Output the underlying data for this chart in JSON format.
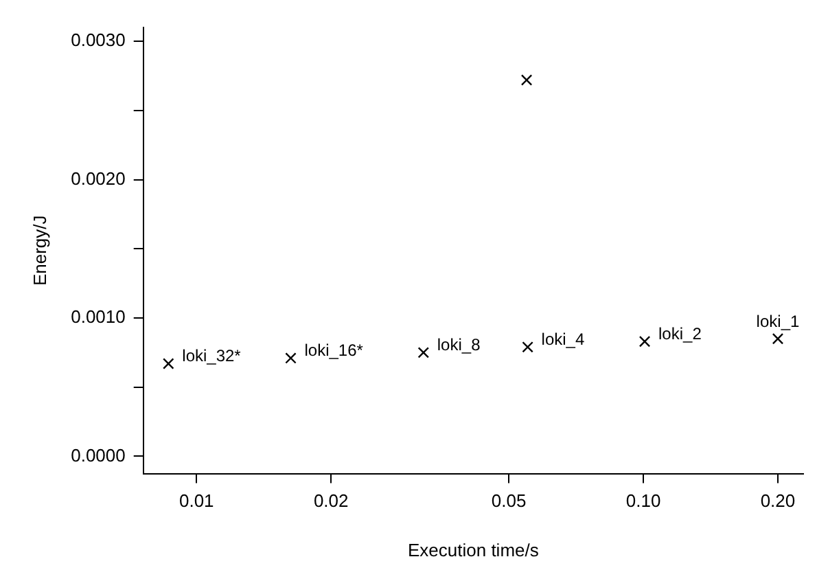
{
  "chart_data": {
    "type": "scatter",
    "xlabel": "Execution time/s",
    "ylabel": "Energy/J",
    "x": [
      0.00865,
      0.01625,
      0.0322,
      0.0551,
      0.0548,
      0.1007,
      0.2
    ],
    "series": [
      {
        "color": "#000000",
        "values": [
          0.00067,
          0.00071,
          0.00075,
          0.00079,
          0.00272,
          0.00083,
          0.00085
        ]
      }
    ],
    "log": "x",
    "xlim": [
      0.0076,
      0.228
    ],
    "ylim": [
      -0.000125,
      0.0031
    ],
    "xticks": [
      0.01,
      0.02,
      0.05,
      {
        "value": 0.1,
        "label": "0.10"
      },
      {
        "value": 0.2,
        "label": "0.20"
      }
    ],
    "yticks": [
      {
        "value": 0,
        "label": "0.0000"
      },
      {
        "value": 0.0005,
        "label": null
      },
      {
        "value": 0.001,
        "label": "0.0010"
      },
      {
        "value": 0.0015,
        "label": null
      },
      {
        "value": 0.002,
        "label": "0.0020"
      },
      {
        "value": 0.0025,
        "label": null
      },
      {
        "value": 0.003,
        "label": "0.0030"
      }
    ],
    "marker": "cross",
    "grid": false,
    "legend": false,
    "annotations": [
      {
        "text": "loki_32*",
        "x": 0.00865,
        "y": 0.00067
      },
      {
        "text": "loki_16*",
        "x": 0.01625,
        "y": 0.00071
      },
      {
        "text": "loki_8",
        "x": 0.0322,
        "y": 0.00075
      },
      {
        "text": "loki_4",
        "x": 0.0551,
        "y": 0.00079
      },
      {
        "text": "loki_2",
        "x": 0.1007,
        "y": 0.00083
      },
      {
        "text": "loki_1",
        "x": 0.2,
        "y": 0.00085
      }
    ]
  }
}
